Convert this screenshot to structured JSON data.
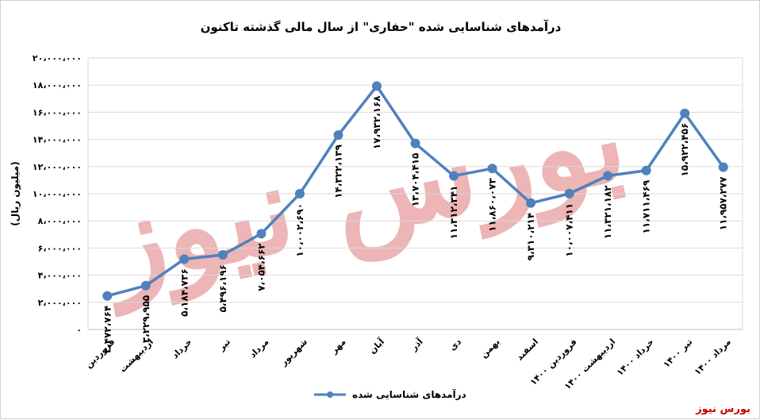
{
  "colors": {
    "line": "#4f81bd",
    "grid": "#d9d9d9",
    "watermark": "#e07a7a",
    "source": "#c00000"
  },
  "watermark_text": "بورس نیوز",
  "source_text": "بورس نیوز",
  "chart_data": {
    "type": "line",
    "title": "درآمدهای شناسایی شده \"حفاری\" از سال مالی گذشته تاکنون",
    "xlabel": "",
    "ylabel": "(میلیون ریال)",
    "ylim": [
      0,
      20000000
    ],
    "yticks": [
      0,
      2000000,
      4000000,
      6000000,
      8000000,
      10000000,
      12000000,
      14000000,
      16000000,
      18000000,
      20000000
    ],
    "ytick_labels": [
      "۰",
      "۲،۰۰۰،۰۰۰",
      "۴،۰۰۰،۰۰۰",
      "۶،۰۰۰،۰۰۰",
      "۸،۰۰۰،۰۰۰",
      "۱۰،۰۰۰،۰۰۰",
      "۱۲،۰۰۰،۰۰۰",
      "۱۴،۰۰۰،۰۰۰",
      "۱۶،۰۰۰،۰۰۰",
      "۱۸،۰۰۰،۰۰۰",
      "۲۰،۰۰۰،۰۰۰"
    ],
    "grid": true,
    "legend_position": "bottom",
    "categories": [
      "فروردین",
      "اردیبهشت",
      "خرداد",
      "تیر",
      "مرداد",
      "شهریور",
      "مهر",
      "آبان",
      "آذر",
      "دی",
      "بهمن",
      "اسفند",
      "فروردین ۱۴۰۰",
      "اردیبهشت ۱۴۰۰",
      "خرداد ۱۴۰۰",
      "تیر ۱۴۰۰",
      "مرداد ۱۴۰۰"
    ],
    "series": [
      {
        "name": "درآمدهای شناسایی شده",
        "values": [
          2472764,
          3229955,
          5184736,
          5496196,
          7054662,
          10002690,
          14322139,
          17932168,
          13704415,
          11312341,
          11860073,
          9310214,
          10007411,
          11321182,
          11711469,
          15922456,
          11957277
        ],
        "labels": [
          "۲،۴۷۲،۷۶۴",
          "۳،۲۲۹،۹۵۵",
          "۵،۱۸۴،۷۳۶",
          "۵،۴۹۶،۱۹۶",
          "۷،۰۵۴،۶۶۲",
          "۱۰،۰۰۲،۶۹۰",
          "۱۴،۳۲۲،۱۳۹",
          "۱۷،۹۳۲،۱۶۸",
          "۱۳،۷۰۴،۴۱۵",
          "۱۱،۳۱۲،۳۴۱",
          "۱۱،۸۶۰،۰۷۳",
          "۹،۳۱۰،۲۱۴",
          "۱۰،۰۰۷،۴۱۱",
          "۱۱،۳۲۱،۱۸۲",
          "۱۱،۷۱۱،۴۶۹",
          "۱۵،۹۲۲،۴۵۶",
          "۱۱،۹۵۷،۲۷۷"
        ]
      }
    ]
  }
}
